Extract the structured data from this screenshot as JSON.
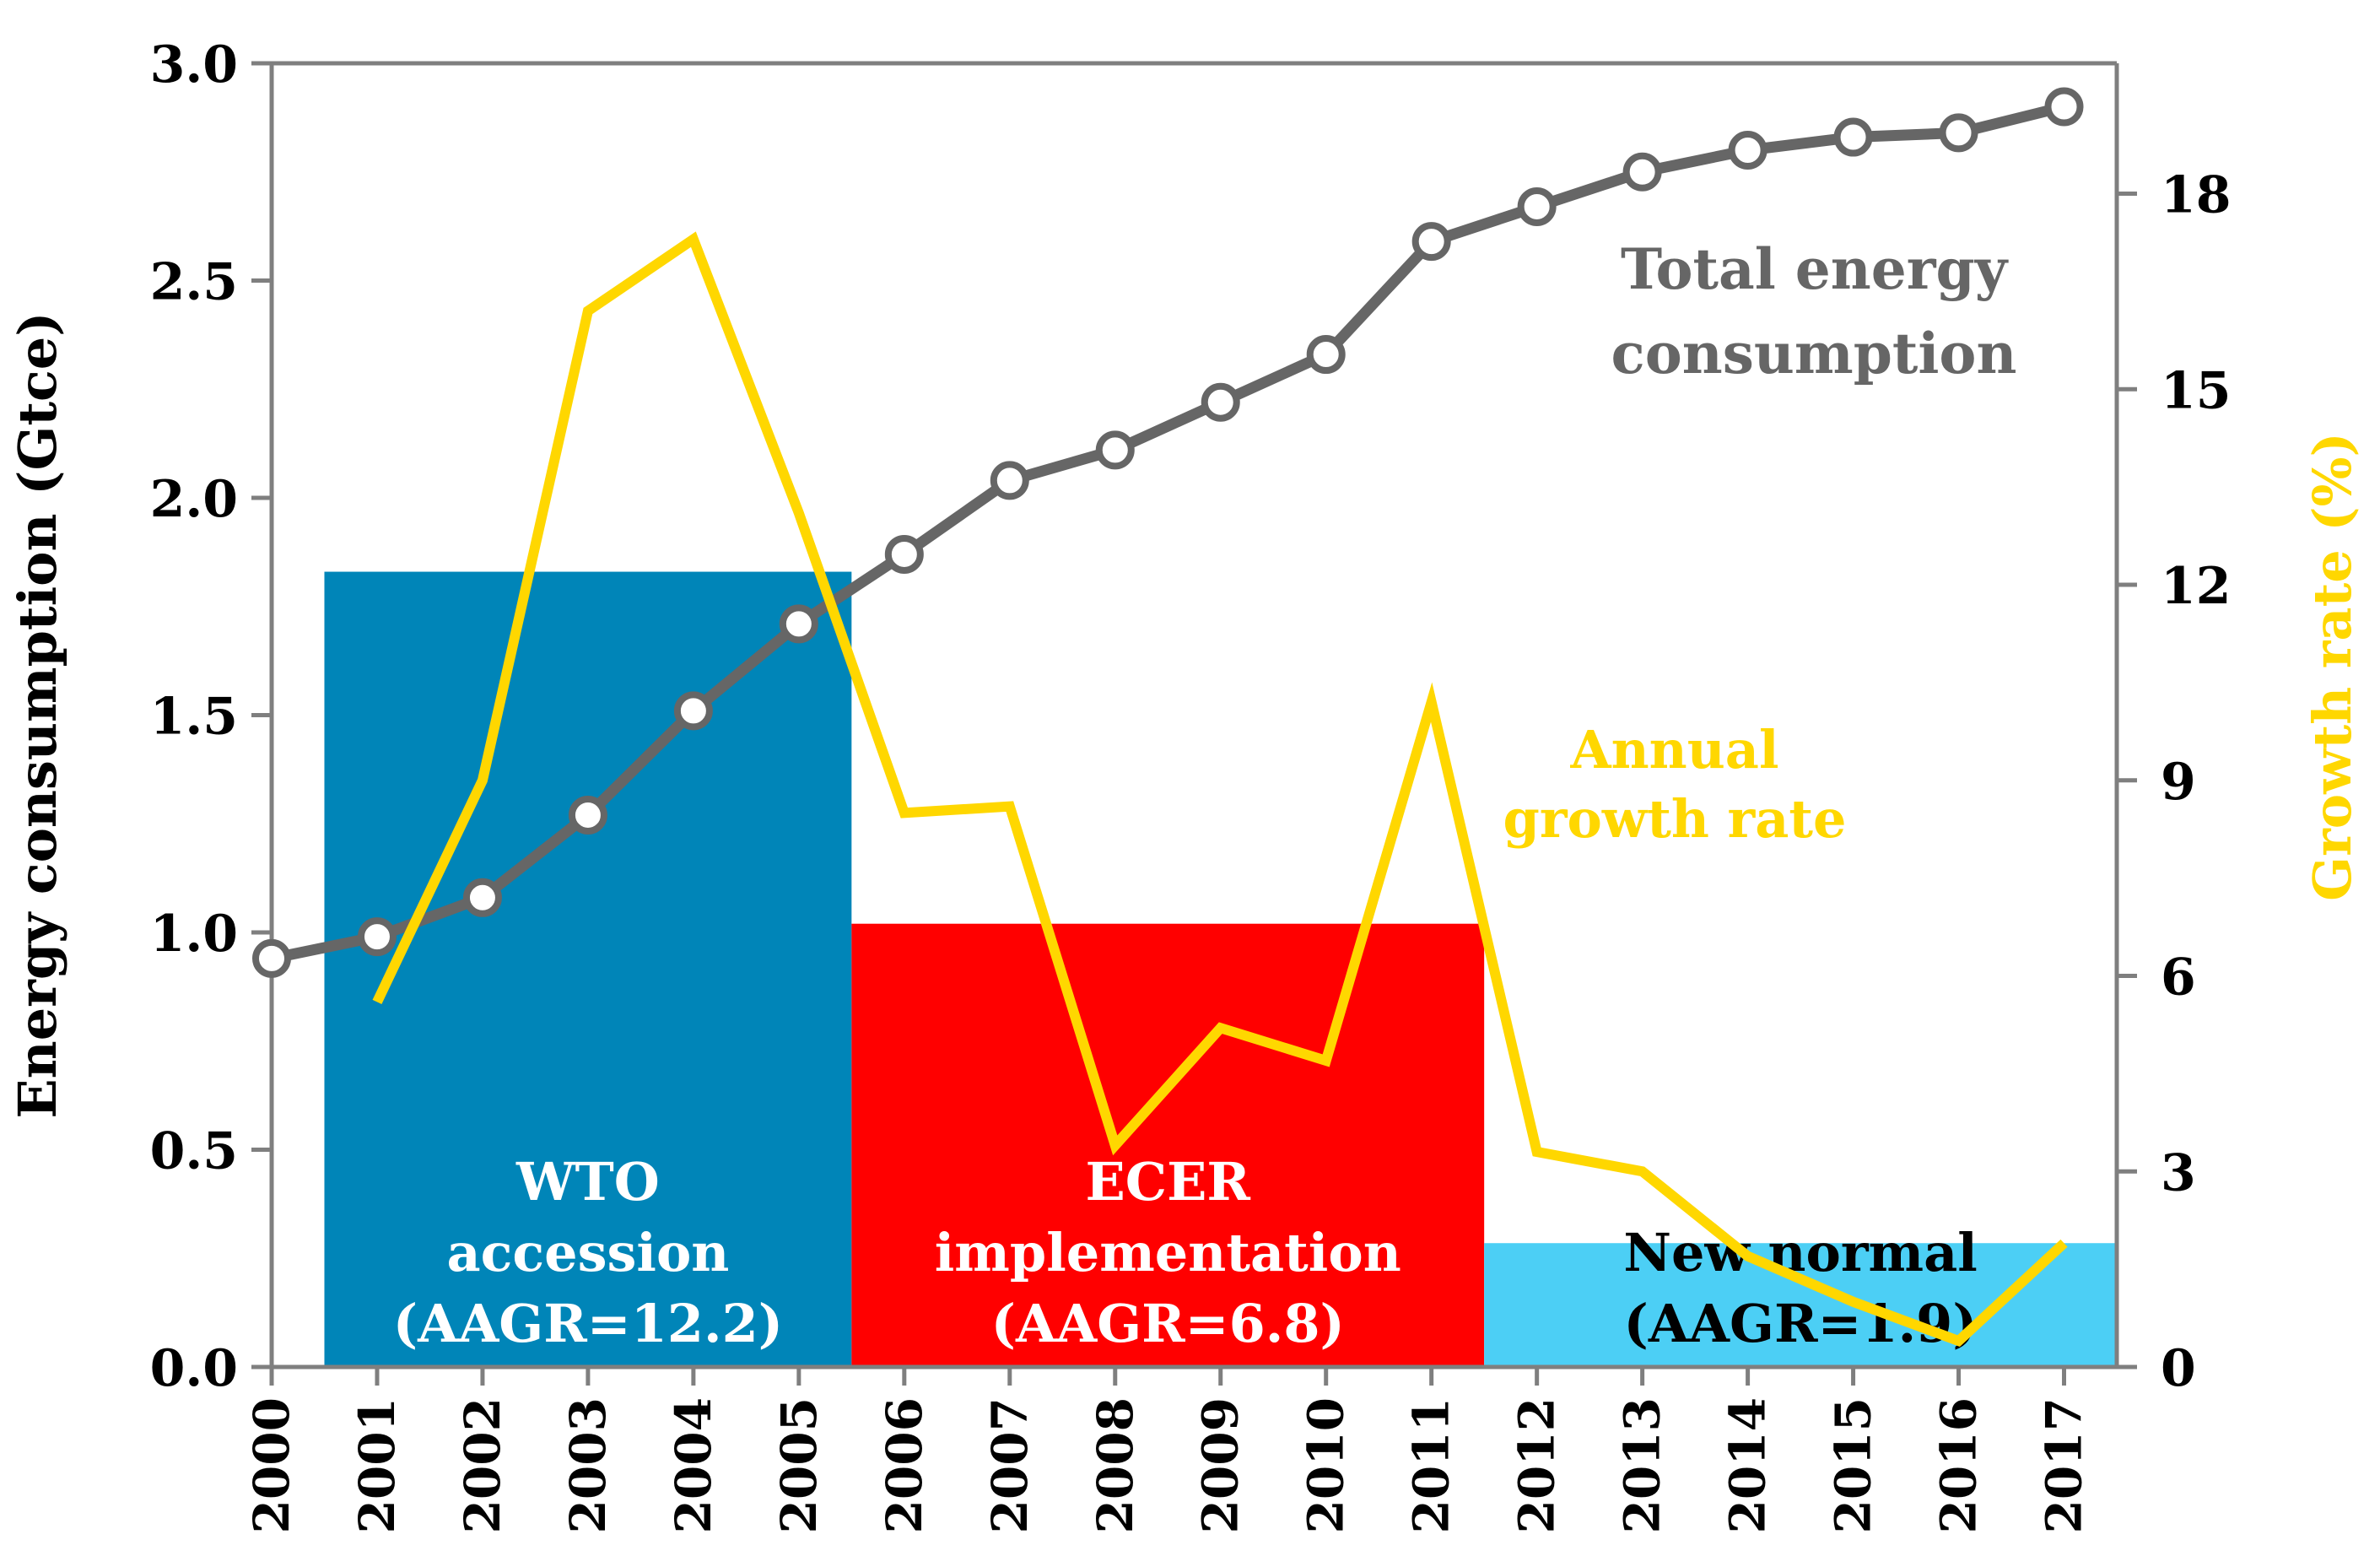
{
  "chart_data": {
    "type": "line",
    "categories": [
      "2000",
      "2001",
      "2002",
      "2003",
      "2004",
      "2005",
      "2006",
      "2007",
      "2008",
      "2009",
      "2010",
      "2011",
      "2012",
      "2013",
      "2014",
      "2015",
      "2016",
      "2017"
    ],
    "series": [
      {
        "name": "Total energy consumption",
        "axis": "left",
        "unit": "Gtce",
        "color": "#666666",
        "values": [
          0.94,
          0.99,
          1.08,
          1.27,
          1.51,
          1.71,
          1.87,
          2.04,
          2.11,
          2.22,
          2.33,
          2.59,
          2.67,
          2.75,
          2.8,
          2.83,
          2.84,
          2.9
        ]
      },
      {
        "name": "Annual growth rate",
        "axis": "right",
        "unit": "%",
        "color": "#FFD700",
        "values": [
          null,
          5.6,
          9.0,
          16.2,
          17.3,
          13.1,
          8.5,
          8.6,
          3.4,
          5.2,
          4.7,
          10.2,
          3.3,
          3.0,
          1.7,
          1.0,
          0.4,
          1.9
        ]
      }
    ],
    "periods": [
      {
        "label_lines": [
          "WTO",
          "accession",
          "(AAGR=12.2)"
        ],
        "start": "2001",
        "end": "2005",
        "aagr": 12.2,
        "color": "#0085B8",
        "text_color": "#FFFFFF"
      },
      {
        "label_lines": [
          "ECER",
          "implementation",
          "(AAGR=6.8)"
        ],
        "start": "2006",
        "end": "2011",
        "aagr": 6.8,
        "color": "#FF0000",
        "text_color": "#FFFFFF"
      },
      {
        "label_lines": [
          "New normal",
          "(AAGR=1.9)"
        ],
        "start": "2012",
        "end": "2017",
        "aagr": 1.9,
        "color": "#4CCFF5",
        "text_color": "#000000"
      }
    ],
    "left_axis": {
      "label": "Energy consumption (Gtce)",
      "ylim": [
        0,
        3.0
      ],
      "ticks": [
        "0.0",
        "0.5",
        "1.0",
        "1.5",
        "2.0",
        "2.5",
        "3.0"
      ]
    },
    "right_axis": {
      "label": "Growth rate (%)",
      "ylim": [
        0,
        20
      ],
      "ticks": [
        "0",
        "3",
        "6",
        "9",
        "12",
        "15",
        "18"
      ],
      "label_color": "#FFD700"
    },
    "annotations": {
      "total_label": [
        "Total energy",
        "consumption"
      ],
      "growth_label": [
        "Annual",
        "growth rate"
      ]
    },
    "axis_color": "#7F7F7F",
    "grid": false
  }
}
